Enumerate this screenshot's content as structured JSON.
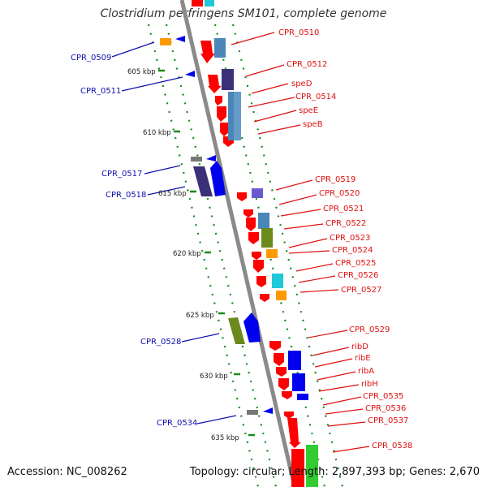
{
  "title": "Clostridium perfringens SM101, complete genome",
  "footer": {
    "accession": "Accession: NC_008262",
    "summary": "Topology: circular; Length: 2,897,393 bp; Genes: 2,670"
  },
  "colors": {
    "red": "#ff0000",
    "blue": "#0000ee",
    "steelblue": "#4a86b8",
    "darkslate": "#3b3178",
    "orange": "#ff9900",
    "olive": "#6b8a1c",
    "cyan": "#20c8d8",
    "slateblue": "#6a5acd",
    "gray": "#777777",
    "green": "#33cc33",
    "gridgreen": "#1a8a1a"
  },
  "kbp_ticks": [
    "605 kbp",
    "610 kbp",
    "615 kbp",
    "620 kbp",
    "625 kbp",
    "630 kbp",
    "635 kbp"
  ],
  "genes_right": [
    "CPR_0510",
    "CPR_0512",
    "speD",
    "CPR_0514",
    "speE",
    "speB",
    "CPR_0519",
    "CPR_0520",
    "CPR_0521",
    "CPR_0522",
    "CPR_0523",
    "CPR_0524",
    "CPR_0525",
    "CPR_0526",
    "CPR_0527",
    "CPR_0529",
    "ribD",
    "ribE",
    "ribA",
    "ribH",
    "CPR_0535",
    "CPR_0536",
    "CPR_0537",
    "CPR_0538"
  ],
  "genes_left": [
    "CPR_0509",
    "CPR_0511",
    "CPR_0517",
    "CPR_0518",
    "CPR_0528",
    "CPR_0534"
  ]
}
